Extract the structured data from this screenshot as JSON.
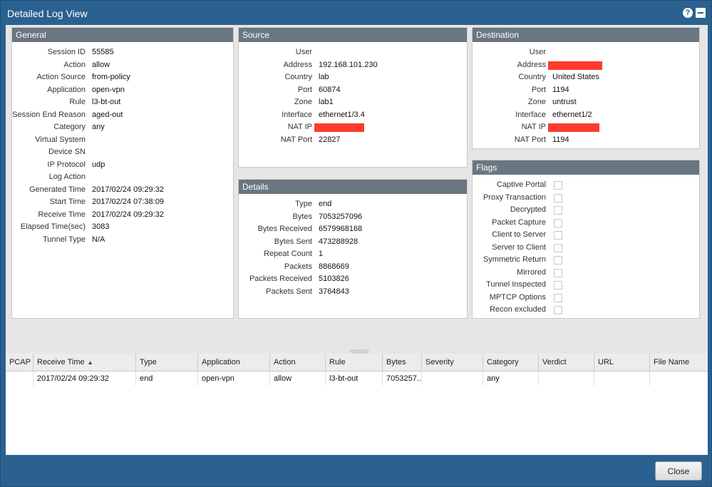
{
  "window": {
    "title": "Detailed Log View"
  },
  "general": {
    "header": "General",
    "rows": [
      {
        "label": "Session ID",
        "value": "55585"
      },
      {
        "label": "Action",
        "value": "allow"
      },
      {
        "label": "Action Source",
        "value": "from-policy"
      },
      {
        "label": "Application",
        "value": "open-vpn"
      },
      {
        "label": "Rule",
        "value": "l3-bt-out"
      },
      {
        "label": "Session End Reason",
        "value": "aged-out"
      },
      {
        "label": "Category",
        "value": "any"
      },
      {
        "label": "Virtual System",
        "value": ""
      },
      {
        "label": "Device SN",
        "value": ""
      },
      {
        "label": "IP Protocol",
        "value": "udp"
      },
      {
        "label": "Log Action",
        "value": ""
      },
      {
        "label": "Generated Time",
        "value": "2017/02/24 09:29:32"
      },
      {
        "label": "Start Time",
        "value": "2017/02/24 07:38:09"
      },
      {
        "label": "Receive Time",
        "value": "2017/02/24 09:29:32"
      },
      {
        "label": "Elapsed Time(sec)",
        "value": "3083"
      },
      {
        "label": "Tunnel Type",
        "value": "N/A"
      }
    ]
  },
  "source": {
    "header": "Source",
    "rows": [
      {
        "label": "User",
        "value": ""
      },
      {
        "label": "Address",
        "value": "192.168.101.230"
      },
      {
        "label": "Country",
        "value": "lab"
      },
      {
        "label": "Port",
        "value": "60874"
      },
      {
        "label": "Zone",
        "value": "lab1"
      },
      {
        "label": "Interface",
        "value": "ethernet1/3.4"
      },
      {
        "label": "NAT IP",
        "value": ""
      },
      {
        "label": "NAT Port",
        "value": "22827"
      }
    ]
  },
  "destination": {
    "header": "Destination",
    "rows": [
      {
        "label": "User",
        "value": ""
      },
      {
        "label": "Address",
        "value": ""
      },
      {
        "label": "Country",
        "value": "United States"
      },
      {
        "label": "Port",
        "value": "1194"
      },
      {
        "label": "Zone",
        "value": "untrust"
      },
      {
        "label": "Interface",
        "value": "ethernet1/2"
      },
      {
        "label": "NAT IP",
        "value": ""
      },
      {
        "label": "NAT Port",
        "value": "1194"
      }
    ]
  },
  "details": {
    "header": "Details",
    "rows": [
      {
        "label": "Type",
        "value": "end"
      },
      {
        "label": "Bytes",
        "value": "7053257096"
      },
      {
        "label": "Bytes Received",
        "value": "6579968168"
      },
      {
        "label": "Bytes Sent",
        "value": "473288928"
      },
      {
        "label": "Repeat Count",
        "value": "1"
      },
      {
        "label": "Packets",
        "value": "8868669"
      },
      {
        "label": "Packets Received",
        "value": "5103826"
      },
      {
        "label": "Packets Sent",
        "value": "3764843"
      }
    ]
  },
  "flags": {
    "header": "Flags",
    "items": [
      {
        "label": "Captive Portal",
        "checked": false
      },
      {
        "label": "Proxy Transaction",
        "checked": false
      },
      {
        "label": "Decrypted",
        "checked": false
      },
      {
        "label": "Packet Capture",
        "checked": false
      },
      {
        "label": "Client to Server",
        "checked": false
      },
      {
        "label": "Server to Client",
        "checked": false
      },
      {
        "label": "Symmetric Return",
        "checked": false
      },
      {
        "label": "Mirrored",
        "checked": false
      },
      {
        "label": "Tunnel Inspected",
        "checked": false
      },
      {
        "label": "MPTCP Options",
        "checked": false
      },
      {
        "label": "Recon excluded",
        "checked": false
      }
    ]
  },
  "table": {
    "columns": [
      "PCAP",
      "Receive Time",
      "Type",
      "Application",
      "Action",
      "Rule",
      "Bytes",
      "Severity",
      "Category",
      "Verdict",
      "URL",
      "File Name"
    ],
    "sorted_column": "Receive Time",
    "sort_direction": "ascending",
    "rows": [
      [
        "",
        "2017/02/24 09:29:32",
        "end",
        "open-vpn",
        "allow",
        "l3-bt-out",
        "7053257...",
        "",
        "any",
        "",
        "",
        ""
      ]
    ]
  },
  "footer": {
    "close_label": "Close"
  },
  "colors": {
    "window_blue": "#2a6190",
    "panel_header": "#6a7682",
    "redaction": "#ff3b30"
  }
}
